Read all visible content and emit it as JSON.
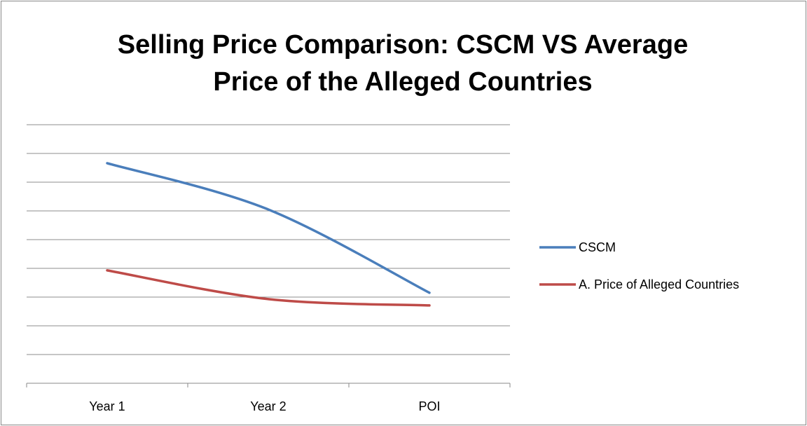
{
  "chart_data": {
    "type": "line",
    "title": "Selling Price Comparison: CSCM VS Average Price of the Alleged Countries",
    "categories": [
      "Year 1",
      "Year 2",
      "POI"
    ],
    "series": [
      {
        "name": "CSCM",
        "color": "#4a7ebb",
        "values": [
          7.66,
          6.05,
          3.15
        ]
      },
      {
        "name": "A. Price of Alleged Countries",
        "color": "#be4b48",
        "values": [
          3.93,
          2.93,
          2.71
        ]
      }
    ],
    "ylim": [
      0,
      9
    ],
    "yticks": [
      0,
      1,
      2,
      3,
      4,
      5,
      6,
      7,
      8,
      9
    ],
    "grid": true,
    "legend": "right"
  }
}
